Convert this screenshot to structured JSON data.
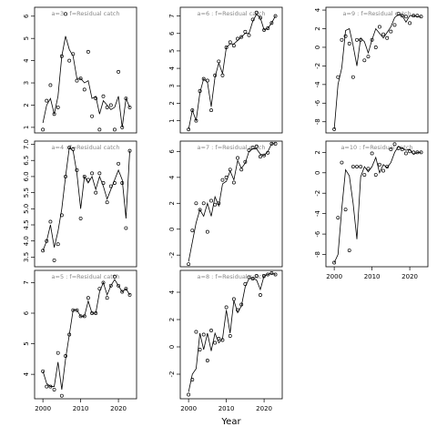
{
  "chart_data": [
    {
      "type": "line",
      "title": "a=3  :  f=Residual catch",
      "x": [
        2000,
        2001,
        2002,
        2003,
        2004,
        2005,
        2006,
        2007,
        2008,
        2009,
        2010,
        2011,
        2012,
        2013,
        2014,
        2015,
        2016,
        2017,
        2018,
        2019,
        2020,
        2021,
        2022,
        2023
      ],
      "xlim": [
        1997.8,
        2024.8
      ],
      "ylim": [
        0.75,
        6.4
      ],
      "yticks": [
        1,
        2,
        3,
        4,
        5,
        6
      ],
      "series": [
        {
          "style": "points",
          "color": "#000000",
          "values": [
            0.9,
            2.2,
            2.9,
            1.6,
            1.9,
            4.2,
            6.1,
            4.0,
            4.3,
            3.1,
            3.2,
            2.7,
            4.4,
            1.5,
            2.3,
            0.9,
            2.4,
            1.9,
            2.0,
            0.9,
            3.5,
            1.0,
            2.3,
            1.9
          ]
        },
        {
          "style": "line",
          "color": "#000000",
          "values": [
            1.2,
            2.0,
            2.3,
            1.6,
            2.4,
            4.2,
            5.1,
            4.5,
            4.2,
            3.2,
            3.2,
            3.0,
            3.1,
            2.3,
            2.4,
            1.6,
            2.2,
            2.0,
            1.8,
            1.9,
            2.4,
            1.0,
            2.3,
            1.9
          ]
        }
      ]
    },
    {
      "type": "line",
      "title": "a=4  :  f=Residual catch",
      "x": [
        2000,
        2001,
        2002,
        2003,
        2004,
        2005,
        2006,
        2007,
        2008,
        2009,
        2010,
        2011,
        2012,
        2013,
        2014,
        2015,
        2016,
        2017,
        2018,
        2019,
        2020,
        2021,
        2022,
        2023
      ],
      "xlim": [
        1997.8,
        2024.8
      ],
      "ylim": [
        3.2,
        7.1
      ],
      "yticks": [
        {
          "value": 3.5,
          "label": "3.5"
        },
        {
          "value": 4,
          "label": "4.0"
        },
        {
          "value": 4.5,
          "label": "4.5"
        },
        {
          "value": 5,
          "label": "5.0"
        },
        {
          "value": 5.5,
          "label": "5.5"
        },
        {
          "value": 6,
          "label": "6.0"
        },
        {
          "value": 6.5,
          "label": "6.5"
        },
        {
          "value": 7,
          "label": "7.0"
        }
      ],
      "series": [
        {
          "style": "points",
          "color": "#000000",
          "values": [
            3.7,
            4.0,
            4.6,
            3.4,
            3.9,
            4.8,
            6.0,
            6.9,
            6.85,
            6.2,
            4.7,
            6.0,
            5.9,
            6.1,
            5.5,
            6.1,
            5.8,
            5.2,
            5.7,
            5.8,
            6.4,
            5.8,
            4.4,
            6.8
          ]
        },
        {
          "style": "line",
          "color": "#000000",
          "values": [
            3.7,
            4.0,
            4.5,
            3.8,
            4.3,
            5.0,
            6.0,
            6.9,
            6.8,
            6.1,
            5.0,
            6.0,
            5.8,
            6.0,
            5.6,
            6.0,
            5.7,
            5.3,
            5.6,
            5.9,
            6.2,
            5.9,
            4.7,
            6.8
          ]
        }
      ]
    },
    {
      "type": "line",
      "title": "a=5  :  f=Residual catch",
      "x": [
        2000,
        2001,
        2002,
        2003,
        2004,
        2005,
        2006,
        2007,
        2008,
        2009,
        2010,
        2011,
        2012,
        2013,
        2014,
        2015,
        2016,
        2017,
        2018,
        2019,
        2020,
        2021,
        2022,
        2023
      ],
      "xlim": [
        1997.8,
        2024.8
      ],
      "xticks": [
        2000,
        2010,
        2020
      ],
      "ylim": [
        3.2,
        7.4
      ],
      "yticks": [
        4,
        5,
        6,
        7
      ],
      "series": [
        {
          "style": "points",
          "color": "#000000",
          "values": [
            4.1,
            3.6,
            3.6,
            3.5,
            4.7,
            3.3,
            4.6,
            5.3,
            6.1,
            6.1,
            5.9,
            5.9,
            6.5,
            6.0,
            6.0,
            6.8,
            7.0,
            6.5,
            6.9,
            7.2,
            6.9,
            6.7,
            6.8,
            6.6
          ]
        },
        {
          "style": "line",
          "color": "#000000",
          "values": [
            4.1,
            3.7,
            3.6,
            3.6,
            4.4,
            3.5,
            4.5,
            5.3,
            6.1,
            6.1,
            5.9,
            5.9,
            6.4,
            6.0,
            6.0,
            6.7,
            7.0,
            6.6,
            6.9,
            7.1,
            6.9,
            6.7,
            6.8,
            6.6
          ]
        }
      ]
    },
    {
      "type": "line",
      "title": "a=6  :  f=Residual catch",
      "x": [
        2000,
        2001,
        2002,
        2003,
        2004,
        2005,
        2006,
        2007,
        2008,
        2009,
        2010,
        2011,
        2012,
        2013,
        2014,
        2015,
        2016,
        2017,
        2018,
        2019,
        2020,
        2021,
        2022,
        2023
      ],
      "xlim": [
        1997.8,
        2024.8
      ],
      "ylim": [
        0.3,
        7.5
      ],
      "yticks": [
        1,
        2,
        3,
        4,
        5,
        6,
        7
      ],
      "series": [
        {
          "style": "points",
          "color": "#000000",
          "values": [
            0.5,
            1.6,
            1.0,
            2.7,
            3.4,
            3.3,
            1.6,
            3.6,
            4.4,
            3.6,
            5.2,
            5.5,
            5.3,
            5.7,
            5.8,
            6.1,
            5.9,
            6.8,
            7.2,
            6.9,
            6.2,
            6.3,
            6.6,
            7.0
          ]
        },
        {
          "style": "line",
          "color": "#000000",
          "values": [
            0.5,
            1.6,
            1.0,
            2.6,
            3.4,
            3.2,
            1.8,
            3.5,
            4.3,
            3.7,
            5.2,
            5.4,
            5.4,
            5.6,
            5.8,
            6.0,
            6.0,
            6.7,
            7.1,
            6.9,
            6.2,
            6.3,
            6.6,
            7.0
          ]
        }
      ]
    },
    {
      "type": "line",
      "title": "a=7  :  f=Residual catch",
      "x": [
        2000,
        2001,
        2002,
        2003,
        2004,
        2005,
        2006,
        2007,
        2008,
        2009,
        2010,
        2011,
        2012,
        2013,
        2014,
        2015,
        2016,
        2017,
        2018,
        2019,
        2020,
        2021,
        2022,
        2023
      ],
      "xlim": [
        1997.8,
        2024.8
      ],
      "ylim": [
        -2.9,
        6.8
      ],
      "yticks": [
        -2,
        0,
        2,
        4,
        6
      ],
      "series": [
        {
          "style": "points",
          "color": "#000000",
          "values": [
            -2.7,
            -0.1,
            2.0,
            1.5,
            2.0,
            -0.2,
            2.2,
            1.9,
            2.0,
            3.8,
            4.0,
            4.6,
            3.6,
            5.5,
            4.6,
            5.2,
            6.1,
            6.3,
            6.4,
            5.6,
            5.7,
            5.9,
            6.6,
            6.6
          ]
        },
        {
          "style": "line",
          "color": "#000000",
          "values": [
            -2.5,
            -1.0,
            0.5,
            1.5,
            1.0,
            2.0,
            1.0,
            2.5,
            1.8,
            3.5,
            3.7,
            4.5,
            3.8,
            5.3,
            4.7,
            5.1,
            6.0,
            6.2,
            6.2,
            5.8,
            5.7,
            6.0,
            6.6,
            6.6
          ]
        }
      ]
    },
    {
      "type": "line",
      "title": "a=8  :  f=Residual catch",
      "x": [
        2000,
        2001,
        2002,
        2003,
        2004,
        2005,
        2006,
        2007,
        2008,
        2009,
        2010,
        2011,
        2012,
        2013,
        2014,
        2015,
        2016,
        2017,
        2018,
        2019,
        2020,
        2021,
        2022,
        2023
      ],
      "xlim": [
        1997.8,
        2024.8
      ],
      "xticks": [
        2000,
        2010,
        2020
      ],
      "xlabel": "Year",
      "ylim": [
        -3.8,
        5.6
      ],
      "yticks": [
        -2,
        0,
        2,
        4
      ],
      "series": [
        {
          "style": "points",
          "color": "#000000",
          "values": [
            -3.5,
            -2.4,
            1.1,
            -0.2,
            0.9,
            -1.0,
            1.2,
            0.3,
            0.6,
            0.5,
            2.9,
            0.8,
            3.5,
            2.7,
            3.1,
            4.6,
            5.1,
            5.0,
            5.2,
            3.8,
            5.2,
            5.3,
            5.4,
            5.3
          ]
        },
        {
          "style": "line",
          "color": "#000000",
          "values": [
            -3.3,
            -2.0,
            -1.6,
            1.0,
            -0.2,
            1.0,
            -0.3,
            1.0,
            0.3,
            0.6,
            2.7,
            1.0,
            3.4,
            2.5,
            3.0,
            4.4,
            5.0,
            5.0,
            4.9,
            4.2,
            5.2,
            5.3,
            5.4,
            5.3
          ]
        }
      ]
    },
    {
      "type": "line",
      "title": "a=9  :  f=Residual catch",
      "x": [
        2000,
        2001,
        2002,
        2003,
        2004,
        2005,
        2006,
        2007,
        2008,
        2009,
        2010,
        2011,
        2012,
        2013,
        2014,
        2015,
        2016,
        2017,
        2018,
        2019,
        2020,
        2021,
        2022,
        2023
      ],
      "xlim": [
        1997.8,
        2024.8
      ],
      "ylim": [
        -9.2,
        4.3
      ],
      "yticks": [
        -8,
        -6,
        -4,
        -2,
        0,
        2,
        4
      ],
      "series": [
        {
          "style": "points",
          "color": "#000000",
          "values": [
            -8.8,
            -3.2,
            0.8,
            1.2,
            0.4,
            -3.2,
            0.8,
            0.8,
            -1.4,
            -1.0,
            0.8,
            0.0,
            2.2,
            1.4,
            1.0,
            1.7,
            2.4,
            3.6,
            3.4,
            3.3,
            2.6,
            3.4,
            3.4,
            3.3
          ]
        },
        {
          "style": "line",
          "color": "#000000",
          "values": [
            -8.8,
            -4.0,
            -2.2,
            1.8,
            2.0,
            0.2,
            -2.0,
            1.0,
            0.6,
            -0.6,
            0.8,
            2.0,
            1.5,
            1.0,
            1.6,
            2.2,
            3.2,
            3.5,
            3.4,
            2.7,
            3.4,
            3.4,
            3.3,
            3.3
          ]
        }
      ]
    },
    {
      "type": "line",
      "title": "a=10  :  f=Residual catch",
      "x": [
        2000,
        2001,
        2002,
        2003,
        2004,
        2005,
        2006,
        2007,
        2008,
        2009,
        2010,
        2011,
        2012,
        2013,
        2014,
        2015,
        2016,
        2017,
        2018,
        2019,
        2020,
        2021,
        2022,
        2023
      ],
      "xlim": [
        1997.8,
        2024.8
      ],
      "xticks": [
        2000,
        2010,
        2020
      ],
      "ylim": [
        -9.2,
        3.1
      ],
      "yticks": [
        -8,
        -6,
        -4,
        -2,
        0,
        2
      ],
      "series": [
        {
          "style": "points",
          "color": "#000000",
          "values": [
            -8.8,
            -4.4,
            1.0,
            -3.6,
            -7.6,
            0.6,
            0.6,
            0.6,
            -0.2,
            0.4,
            1.9,
            -0.2,
            0.8,
            0.2,
            0.6,
            2.3,
            2.8,
            2.4,
            2.3,
            1.9,
            2.1,
            2.0,
            2.0,
            2.0
          ]
        },
        {
          "style": "line",
          "color": "#000000",
          "values": [
            -8.8,
            -8.0,
            -3.5,
            0.3,
            -0.3,
            -3.0,
            -6.5,
            -0.4,
            0.6,
            0.1,
            0.6,
            1.5,
            0.0,
            0.8,
            0.5,
            1.0,
            2.0,
            2.6,
            2.4,
            2.2,
            2.3,
            1.8,
            2.0,
            2.0
          ]
        }
      ]
    }
  ]
}
